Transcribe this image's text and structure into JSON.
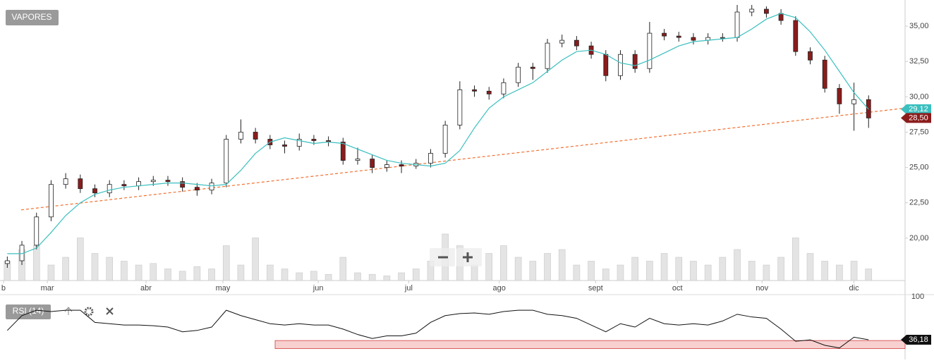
{
  "chart_data": {
    "type": "candlestick",
    "title": "VAPORES",
    "xlim": [
      -0.5,
      61.5
    ],
    "xticks": [
      {
        "value": -0.26,
        "label": "b"
      },
      {
        "value": 2.74,
        "label": "mar"
      },
      {
        "value": 9.5,
        "label": "abr"
      },
      {
        "value": 14.77,
        "label": "may"
      },
      {
        "value": 21.3,
        "label": "jun"
      },
      {
        "value": 27.5,
        "label": "jul"
      },
      {
        "value": 33.7,
        "label": "ago"
      },
      {
        "value": 40.3,
        "label": "sept"
      },
      {
        "value": 45.9,
        "label": "oct"
      },
      {
        "value": 51.7,
        "label": "nov"
      },
      {
        "value": 58,
        "label": "dic"
      }
    ],
    "ylim": [
      17,
      36.85
    ],
    "yticks": [
      {
        "value": 20,
        "label": "20,00"
      },
      {
        "value": 22.5,
        "label": "22,50"
      },
      {
        "value": 25,
        "label": "25,00"
      },
      {
        "value": 27.5,
        "label": "27,50"
      },
      {
        "value": 30,
        "label": "30,00"
      },
      {
        "value": 32.5,
        "label": "32,50"
      },
      {
        "value": 35,
        "label": "35,00"
      }
    ],
    "open": [
      18.2,
      18.4,
      19.5,
      21.5,
      23.8,
      24.2,
      23.5,
      23.2,
      23.8,
      23.7,
      24.0,
      24.1,
      24.0,
      23.6,
      23.4,
      23.9,
      27.0,
      27.5,
      27.0,
      26.6,
      26.5,
      27.0,
      26.9,
      26.8,
      25.5,
      25.6,
      25.0,
      25.2,
      25.1,
      25.3,
      26.0,
      28.0,
      30.5,
      30.4,
      30.2,
      31.0,
      32.1,
      32.0,
      33.8,
      34.0,
      33.6,
      33.0,
      31.5,
      33.0,
      32.0,
      34.5,
      34.3,
      34.2,
      34.0,
      34.2,
      34.2,
      36.0,
      36.2,
      35.9,
      35.4,
      33.2,
      32.6,
      30.6,
      29.5,
      29.8
    ],
    "high": [
      18.7,
      19.8,
      21.8,
      24.1,
      24.6,
      24.5,
      23.8,
      24.1,
      24.1,
      24.3,
      24.4,
      24.4,
      24.3,
      23.9,
      24.2,
      27.3,
      28.4,
      27.8,
      27.3,
      26.9,
      27.4,
      27.3,
      27.2,
      27.1,
      26.4,
      25.9,
      25.5,
      25.5,
      25.6,
      26.3,
      28.3,
      31.1,
      30.8,
      30.7,
      31.3,
      32.4,
      32.4,
      34.1,
      34.4,
      34.3,
      33.9,
      33.3,
      33.3,
      33.3,
      35.3,
      34.8,
      34.6,
      34.5,
      34.5,
      34.5,
      36.5,
      36.5,
      36.4,
      36.2,
      35.7,
      33.5,
      32.9,
      30.9,
      31.0,
      30.1
    ],
    "low": [
      17.9,
      18.1,
      19.2,
      21.2,
      23.5,
      23.2,
      22.9,
      22.9,
      23.4,
      23.4,
      23.7,
      23.7,
      23.3,
      23.0,
      23.1,
      23.6,
      26.7,
      26.7,
      26.3,
      26.0,
      26.2,
      26.6,
      26.5,
      25.2,
      25.2,
      24.6,
      24.7,
      24.6,
      24.9,
      25.0,
      25.7,
      27.7,
      30.0,
      29.8,
      29.9,
      30.7,
      31.2,
      31.7,
      33.5,
      33.3,
      32.7,
      31.1,
      31.2,
      31.7,
      31.7,
      34.0,
      33.9,
      33.7,
      33.7,
      33.9,
      33.9,
      35.7,
      35.6,
      35.1,
      32.9,
      32.3,
      30.3,
      28.8,
      27.6,
      27.8
    ],
    "close": [
      18.4,
      19.5,
      21.5,
      23.8,
      24.2,
      23.5,
      23.2,
      23.8,
      23.7,
      24.0,
      24.1,
      24.0,
      23.6,
      23.4,
      23.9,
      27.0,
      27.5,
      27.0,
      26.6,
      26.5,
      27.0,
      26.9,
      26.8,
      25.5,
      25.6,
      25.0,
      25.2,
      25.1,
      25.3,
      26.0,
      28.0,
      30.5,
      30.4,
      30.2,
      31.0,
      32.1,
      32.0,
      33.8,
      34.0,
      33.6,
      33.0,
      31.5,
      33.0,
      32.0,
      34.5,
      34.3,
      34.2,
      34.0,
      34.2,
      34.2,
      36.0,
      36.2,
      35.9,
      35.4,
      33.2,
      32.6,
      30.6,
      29.5,
      29.8,
      28.5
    ],
    "up_color": "#ffffff",
    "down_color": "#8b1c1c",
    "moving_average": {
      "color": "#3bbfbf",
      "values": [
        18.9,
        18.9,
        19.3,
        20.4,
        21.6,
        22.5,
        23.1,
        23.4,
        23.6,
        23.7,
        23.8,
        23.9,
        23.9,
        23.8,
        23.7,
        23.8,
        24.8,
        26.0,
        26.8,
        27.1,
        26.9,
        26.7,
        26.8,
        26.7,
        26.3,
        25.9,
        25.5,
        25.3,
        25.2,
        25.1,
        25.3,
        26.2,
        27.8,
        29.2,
        30.0,
        30.5,
        31.0,
        31.8,
        32.6,
        33.2,
        33.3,
        33.0,
        32.4,
        32.2,
        32.6,
        33.1,
        33.6,
        33.9,
        34.0,
        34.1,
        34.2,
        34.8,
        35.5,
        35.9,
        35.6,
        34.6,
        33.3,
        31.8,
        30.3,
        29.12
      ],
      "last_label": "29,12"
    },
    "close_label": "28,50",
    "trendline": {
      "color": "#f07030",
      "x": [
        0.95,
        61.5
      ],
      "y": [
        22.0,
        29.2
      ]
    },
    "volume": {
      "color": "#e4e4e4",
      "max": 100,
      "values": [
        25,
        40,
        45,
        20,
        30,
        55,
        35,
        30,
        25,
        20,
        22,
        15,
        12,
        18,
        15,
        45,
        20,
        55,
        20,
        15,
        10,
        12,
        8,
        30,
        10,
        8,
        6,
        10,
        15,
        25,
        60,
        45,
        20,
        35,
        45,
        30,
        25,
        35,
        40,
        20,
        25,
        15,
        20,
        30,
        25,
        35,
        30,
        25,
        20,
        30,
        40,
        25,
        20,
        30,
        55,
        35,
        25,
        20,
        25,
        15
      ]
    },
    "rsi": {
      "title": "RSI (14)",
      "ylim": [
        9,
        100
      ],
      "yticks": [
        100
      ],
      "band": [
        23,
        35
      ],
      "last_label": "36,18",
      "values": [
        50,
        72,
        80,
        78,
        80,
        80,
        62,
        60,
        58,
        58,
        57,
        55,
        48,
        50,
        55,
        80,
        72,
        66,
        60,
        58,
        60,
        58,
        58,
        52,
        44,
        38,
        42,
        42,
        46,
        62,
        72,
        75,
        76,
        74,
        78,
        80,
        80,
        74,
        72,
        68,
        58,
        48,
        60,
        55,
        68,
        60,
        58,
        60,
        58,
        64,
        74,
        70,
        68,
        52,
        34,
        36,
        28,
        24,
        40,
        36.18
      ]
    }
  }
}
